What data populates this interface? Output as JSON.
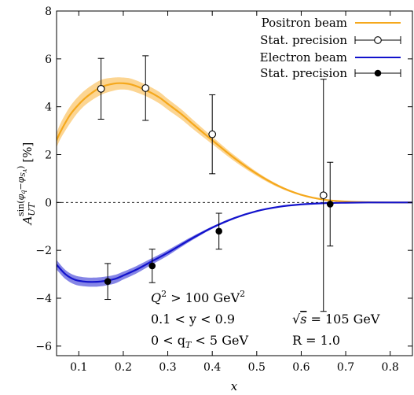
{
  "chart_data": {
    "type": "line",
    "xlabel": "x",
    "ylabel": "A_UT^{sin(φ_q−φ_{S_A})} [%]",
    "ylabel_parts": {
      "base": "A",
      "sub": "UT",
      "sup_main": "sin(",
      "sup_phi1": "φ",
      "sup_q": "q",
      "sup_minus": "−",
      "sup_phi2": "φ",
      "sup_s": "S",
      "sup_a": "A",
      "sup_close": ")",
      "unit": "[%]"
    },
    "xlim": [
      0.05,
      0.85
    ],
    "ylim": [
      -6.4,
      8
    ],
    "x_ticks": [
      {
        "v": 0.1,
        "label": "0.1"
      },
      {
        "v": 0.2,
        "label": "0.2"
      },
      {
        "v": 0.3,
        "label": "0.3"
      },
      {
        "v": 0.4,
        "label": "0.4"
      },
      {
        "v": 0.5,
        "label": "0.5"
      },
      {
        "v": 0.6,
        "label": "0.6"
      },
      {
        "v": 0.7,
        "label": "0.7"
      },
      {
        "v": 0.8,
        "label": "0.8"
      }
    ],
    "y_ticks": [
      {
        "v": -6,
        "label": "−6"
      },
      {
        "v": -4,
        "label": "−4"
      },
      {
        "v": -2,
        "label": "−2"
      },
      {
        "v": 0,
        "label": "0"
      },
      {
        "v": 2,
        "label": "2"
      },
      {
        "v": 4,
        "label": "4"
      },
      {
        "v": 6,
        "label": "6"
      },
      {
        "v": 8,
        "label": "8"
      }
    ],
    "zero_line": true,
    "legend_position": "top-right",
    "series": [
      {
        "name": "Positron beam",
        "color": "#f5a81c",
        "band_color": "#fcd592",
        "x": [
          0.05,
          0.06,
          0.08,
          0.1,
          0.12,
          0.15,
          0.18,
          0.2,
          0.22,
          0.25,
          0.28,
          0.3,
          0.33,
          0.36,
          0.4,
          0.45,
          0.5,
          0.55,
          0.6,
          0.65,
          0.7,
          0.75,
          0.8,
          0.85
        ],
        "y": [
          2.6,
          3.0,
          3.65,
          4.1,
          4.45,
          4.82,
          4.97,
          4.98,
          4.92,
          4.7,
          4.4,
          4.12,
          3.7,
          3.22,
          2.6,
          1.85,
          1.2,
          0.68,
          0.32,
          0.12,
          0.04,
          0.01,
          0.0,
          0.0
        ],
        "upper": [
          2.9,
          3.35,
          4.0,
          4.45,
          4.78,
          5.12,
          5.22,
          5.22,
          5.16,
          4.93,
          4.63,
          4.33,
          3.9,
          3.4,
          2.75,
          1.97,
          1.28,
          0.73,
          0.35,
          0.14,
          0.05,
          0.01,
          0.0,
          0.0
        ],
        "lower": [
          2.3,
          2.7,
          3.3,
          3.8,
          4.15,
          4.5,
          4.68,
          4.72,
          4.66,
          4.45,
          4.15,
          3.88,
          3.48,
          3.02,
          2.44,
          1.72,
          1.11,
          0.62,
          0.29,
          0.11,
          0.03,
          0.0,
          0.0,
          0.0
        ]
      },
      {
        "name": "Electron beam",
        "color": "#1212cc",
        "band_color": "#8585e6",
        "x": [
          0.05,
          0.07,
          0.09,
          0.11,
          0.13,
          0.15,
          0.18,
          0.2,
          0.23,
          0.26,
          0.3,
          0.35,
          0.4,
          0.45,
          0.5,
          0.55,
          0.6,
          0.65,
          0.7,
          0.75,
          0.8,
          0.85
        ],
        "y": [
          -2.6,
          -3.0,
          -3.22,
          -3.3,
          -3.32,
          -3.3,
          -3.2,
          -3.05,
          -2.8,
          -2.5,
          -2.1,
          -1.55,
          -1.05,
          -0.65,
          -0.36,
          -0.18,
          -0.08,
          -0.03,
          -0.01,
          0.0,
          0.0,
          0.0
        ],
        "upper": [
          -2.4,
          -2.82,
          -3.04,
          -3.12,
          -3.14,
          -3.12,
          -3.03,
          -2.89,
          -2.65,
          -2.37,
          -1.99,
          -1.47,
          -1.0,
          -0.61,
          -0.34,
          -0.17,
          -0.07,
          -0.03,
          -0.01,
          0.0,
          0.0,
          0.0
        ],
        "lower": [
          -2.8,
          -3.2,
          -3.42,
          -3.5,
          -3.52,
          -3.5,
          -3.39,
          -3.22,
          -2.96,
          -2.64,
          -2.22,
          -1.63,
          -1.1,
          -0.69,
          -0.38,
          -0.19,
          -0.09,
          -0.04,
          -0.01,
          0.0,
          0.0,
          0.0
        ]
      }
    ],
    "points": [
      {
        "name": "Stat. precision",
        "of": "Positron beam",
        "marker": "open-circle",
        "x": [
          0.15,
          0.25,
          0.4,
          0.65
        ],
        "y": [
          4.75,
          4.78,
          2.85,
          0.3
        ],
        "yerr": [
          1.27,
          1.35,
          1.65,
          4.85
        ]
      },
      {
        "name": "Stat. precision",
        "of": "Electron beam",
        "marker": "filled-circle",
        "x": [
          0.165,
          0.265,
          0.415,
          0.665
        ],
        "y": [
          -3.3,
          -2.65,
          -1.2,
          -0.07
        ],
        "yerr": [
          0.75,
          0.7,
          0.75,
          1.75
        ]
      }
    ],
    "annotations": [
      {
        "id": "q2",
        "base": "Q",
        "sup": "2",
        "rest": " > 100 GeV",
        "rest_sup": "2"
      },
      {
        "id": "y",
        "text": "0.1 < y < 0.9"
      },
      {
        "id": "qt",
        "pre": "0 < q",
        "sub": "T",
        "post": " < 5 GeV"
      },
      {
        "id": "sqs",
        "rad": "√",
        "inner": "s",
        "post": " = 105 GeV"
      },
      {
        "id": "r",
        "text": "R = 1.0"
      }
    ]
  }
}
